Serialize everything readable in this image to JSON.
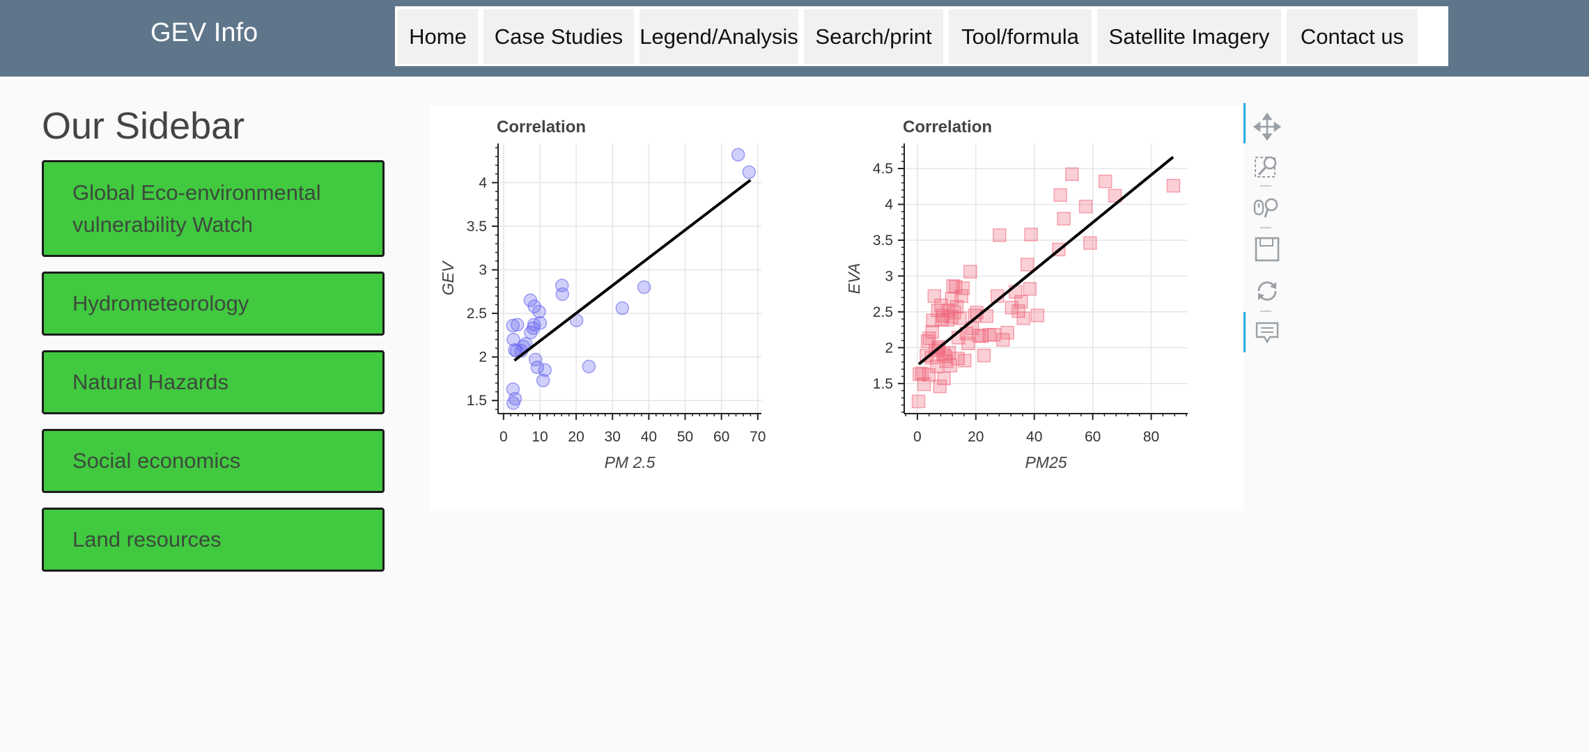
{
  "brand": "GEV Info",
  "nav": [
    {
      "label": "Home"
    },
    {
      "label": "Case Studies"
    },
    {
      "label": "Legend/Analysis"
    },
    {
      "label": "Search/print"
    },
    {
      "label": "Tool/formula"
    },
    {
      "label": "Satellite Imagery"
    },
    {
      "label": "Contact us"
    }
  ],
  "sidebar": {
    "title": "Our Sidebar",
    "items": [
      {
        "label": "Global Eco-environmental vulnerability Watch"
      },
      {
        "label": "Hydrometeorology"
      },
      {
        "label": "Natural Hazards"
      },
      {
        "label": "Social economics"
      },
      {
        "label": "Land resources"
      }
    ]
  },
  "toolbar": {
    "tools": [
      "pan-icon",
      "box-zoom-icon",
      "wheel-zoom-icon",
      "save-icon",
      "reset-icon",
      "hover-icon"
    ]
  },
  "chart_data": [
    {
      "type": "scatter",
      "title": "Correlation",
      "xlabel": "PM 2.5",
      "ylabel": "GEV",
      "xlim": [
        -1.5,
        71
      ],
      "ylim": [
        1.35,
        4.45
      ],
      "xticks": [
        0,
        10,
        20,
        30,
        40,
        50,
        60,
        70
      ],
      "yticks": [
        1.5,
        2,
        2.5,
        3,
        3.5,
        4
      ],
      "ytick_labels": [
        "1.5",
        "2",
        "2.5",
        "3",
        "3.5",
        "4"
      ],
      "grid": true,
      "marker": "circle",
      "color": "#6464f0",
      "fit_line": {
        "x": [
          3,
          68
        ],
        "y": [
          1.96,
          4.03
        ]
      },
      "series": [
        {
          "x": [
            2.6,
            2.7,
            3.2,
            2.7,
            3.1,
            3.8,
            4.9,
            5.5,
            7.4,
            7.5,
            8.2,
            8.5,
            9.8,
            10.1,
            8.4,
            8.8,
            9.3,
            11.4,
            10.9,
            16.1,
            16.2,
            20.1,
            23.5,
            32.7,
            38.7,
            64.6,
            67.6,
            2.6,
            3.6,
            6.1
          ],
          "y": [
            1.63,
            1.47,
            1.52,
            2.2,
            2.08,
            2.37,
            2.07,
            2.12,
            2.65,
            2.28,
            2.33,
            2.58,
            2.52,
            2.39,
            2.37,
            1.97,
            1.88,
            1.85,
            1.73,
            2.82,
            2.72,
            2.42,
            1.89,
            2.56,
            2.8,
            4.32,
            4.12,
            2.36,
            2.07,
            2.15
          ]
        }
      ]
    },
    {
      "type": "scatter",
      "title": "Correlation",
      "xlabel": "PM25",
      "ylabel": "EVA",
      "xlim": [
        -4.5,
        92.5
      ],
      "ylim": [
        1.08,
        4.85
      ],
      "xticks": [
        0,
        20,
        40,
        60,
        80
      ],
      "yticks": [
        1.5,
        2,
        2.5,
        3,
        3.5,
        4,
        4.5
      ],
      "ytick_labels": [
        "1.5",
        "2",
        "2.5",
        "3",
        "3.5",
        "4",
        "4.5"
      ],
      "grid": true,
      "marker": "square",
      "color": "#f06478",
      "fit_line": {
        "x": [
          0.5,
          87.5
        ],
        "y": [
          1.77,
          4.66
        ]
      },
      "series": [
        {
          "x": [
            0.4,
            0.7,
            1.6,
            2.3,
            3.1,
            3.5,
            3.9,
            4.1,
            4.8,
            5.3,
            5.8,
            6.2,
            6.6,
            7.0,
            7.3,
            7.7,
            8.1,
            8.4,
            8.7,
            9.1,
            9.5,
            9.9,
            10.3,
            10.6,
            10.9,
            11.3,
            11.7,
            12.2,
            12.6,
            13.1,
            13.5,
            14.0,
            14.6,
            15.1,
            15.6,
            16.2,
            16.8,
            17.4,
            18.1,
            18.8,
            19.6,
            20.3,
            21.1,
            22.0,
            22.8,
            23.7,
            24.6,
            26.2,
            27.4,
            28.1,
            29.3,
            30.8,
            32.3,
            33.6,
            34.6,
            35.5,
            36.3,
            37.6,
            38.5,
            38.9,
            41.1,
            48.4,
            48.9,
            50.1,
            52.9,
            57.6,
            59.1,
            64.3,
            67.6,
            87.6,
            8.9,
            11.8,
            13.9,
            7.2,
            5.1
          ],
          "y": [
            1.25,
            1.63,
            1.64,
            1.49,
            1.89,
            2.09,
            1.62,
            2.13,
            1.86,
            2.38,
            2.72,
            1.96,
            1.74,
            2.52,
            1.99,
            1.46,
            2.59,
            2.39,
            2.45,
            1.57,
            1.88,
            1.81,
            2.39,
            2.52,
            1.93,
            1.75,
            2.43,
            2.86,
            2.49,
            2.85,
            2.57,
            2.14,
            2.41,
            2.72,
            2.83,
            1.82,
            2.2,
            2.06,
            3.06,
            2.27,
            2.45,
            2.49,
            2.17,
            2.16,
            1.89,
            2.44,
            2.18,
            2.18,
            2.72,
            3.57,
            2.11,
            2.21,
            2.56,
            2.78,
            2.51,
            2.64,
            2.41,
            3.16,
            2.82,
            3.58,
            2.45,
            3.37,
            4.13,
            3.8,
            4.42,
            3.97,
            3.46,
            4.32,
            4.12,
            4.26,
            1.91,
            2.68,
            1.85,
            2.01,
            2.22
          ]
        }
      ]
    }
  ]
}
